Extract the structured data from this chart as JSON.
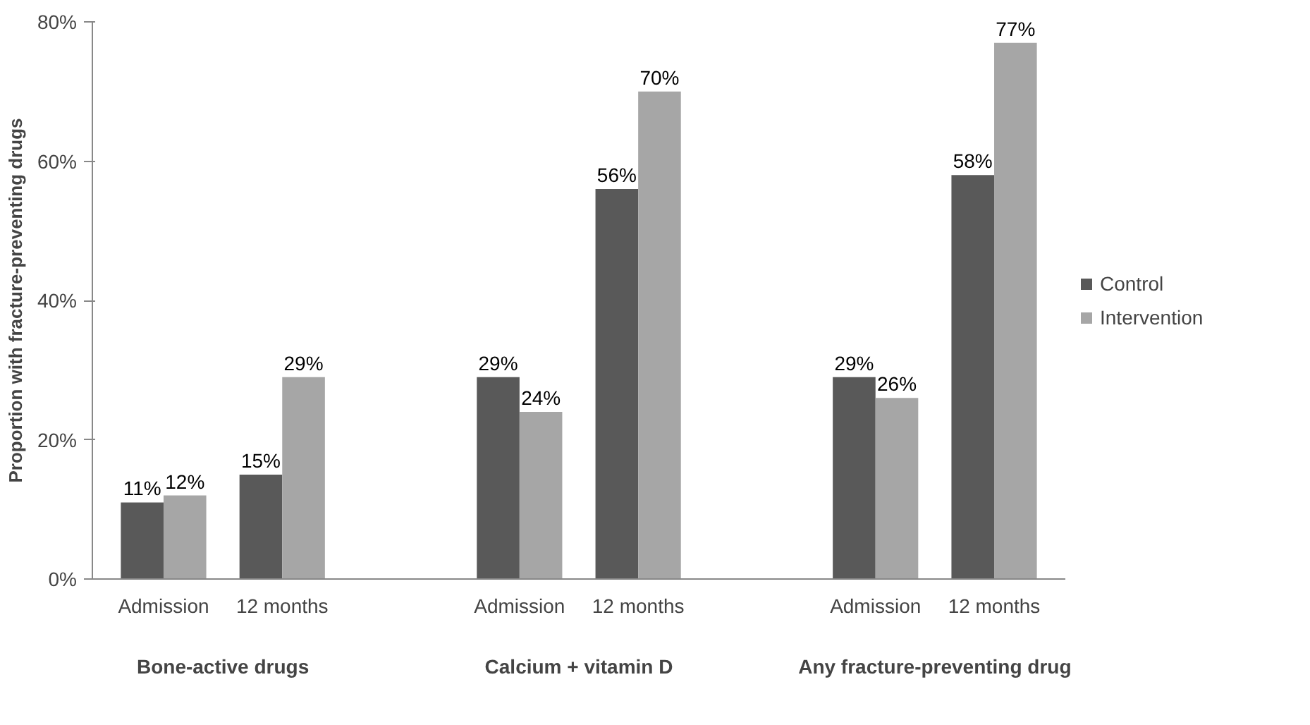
{
  "chart_data": {
    "type": "bar",
    "ylabel": "Proportion with fracture-preventing drugs",
    "categories": [
      "Admission",
      "12 months",
      null,
      "Admission",
      "12 months",
      null,
      "Admission",
      "12 months"
    ],
    "series": [
      {
        "name": "Control",
        "color": "#595959",
        "values": [
          11,
          15,
          null,
          29,
          56,
          null,
          29,
          58
        ],
        "value_labels": [
          "11%",
          "15%",
          null,
          "29%",
          "56%",
          null,
          "29%",
          "58%"
        ]
      },
      {
        "name": "Intervention",
        "color": "#a6a6a6",
        "values": [
          12,
          29,
          null,
          24,
          70,
          null,
          26,
          77
        ],
        "value_labels": [
          "12%",
          "29%",
          null,
          "24%",
          "70%",
          null,
          "26%",
          "77%"
        ]
      }
    ],
    "ylim": [
      0,
      80
    ],
    "yticks": [
      {
        "value": 0,
        "label": "0%"
      },
      {
        "value": 20,
        "label": "20%"
      },
      {
        "value": 40,
        "label": "40%"
      },
      {
        "value": 60,
        "label": "60%"
      },
      {
        "value": 80,
        "label": "80%"
      }
    ],
    "annotations": [
      "Bone-active drugs",
      "Calcium + vitamin D",
      "Any fracture-preventing drug"
    ],
    "grid": false,
    "legend": "right"
  }
}
